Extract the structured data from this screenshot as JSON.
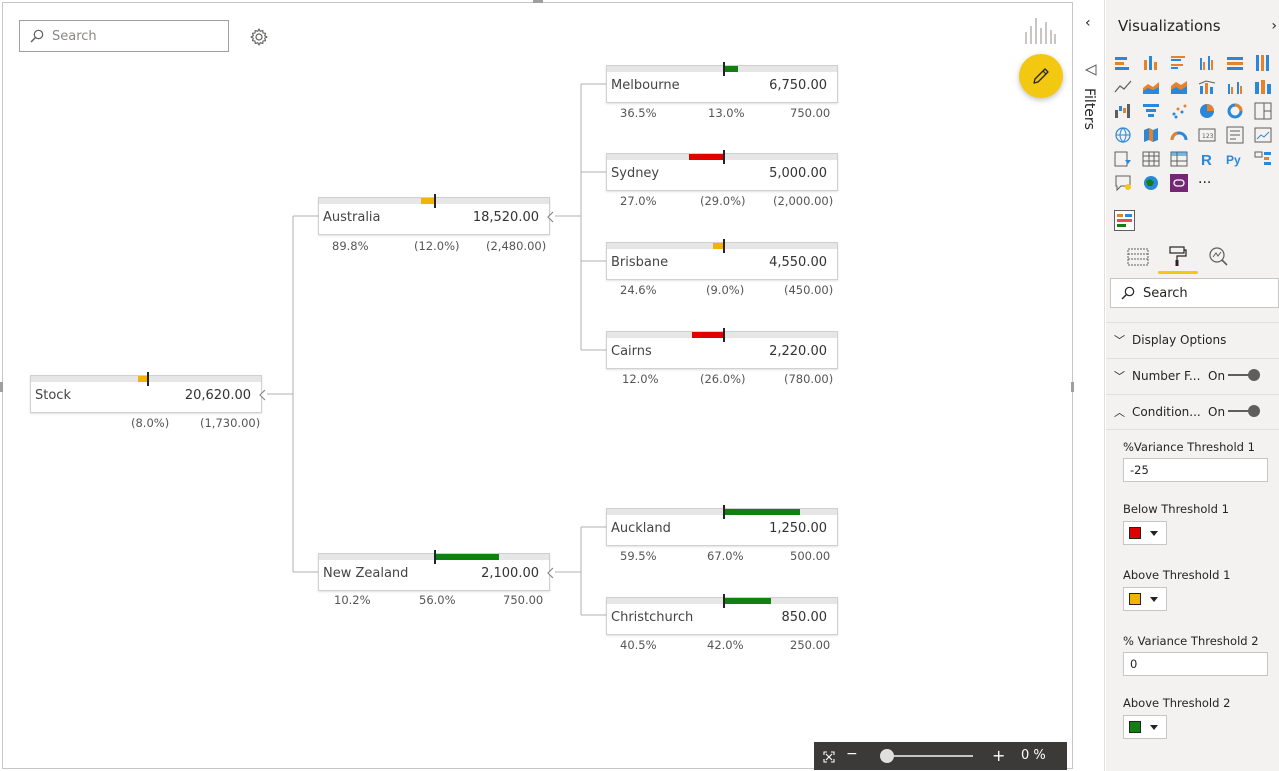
{
  "search": {
    "placeholder": "Search"
  },
  "tree": {
    "root": {
      "label": "Stock",
      "value": "20,620.00",
      "stats": [
        "(8.0%)",
        "(1,730.00)"
      ]
    },
    "countries": [
      {
        "label": "Australia",
        "value": "18,520.00",
        "stats": [
          "89.8%",
          "(12.0%)",
          "(2,480.00)"
        ]
      },
      {
        "label": "New Zealand",
        "value": "2,100.00",
        "stats": [
          "10.2%",
          "56.0%",
          "750.00"
        ]
      }
    ],
    "cities": [
      {
        "label": "Melbourne",
        "value": "6,750.00",
        "stats": [
          "36.5%",
          "13.0%",
          "750.00"
        ]
      },
      {
        "label": "Sydney",
        "value": "5,000.00",
        "stats": [
          "27.0%",
          "(29.0%)",
          "(2,000.00)"
        ]
      },
      {
        "label": "Brisbane",
        "value": "4,550.00",
        "stats": [
          "24.6%",
          "(9.0%)",
          "(450.00)"
        ]
      },
      {
        "label": "Cairns",
        "value": "2,220.00",
        "stats": [
          "12.0%",
          "(26.0%)",
          "(780.00)"
        ]
      },
      {
        "label": "Auckland",
        "value": "1,250.00",
        "stats": [
          "59.5%",
          "67.0%",
          "500.00"
        ]
      },
      {
        "label": "Christchurch",
        "value": "850.00",
        "stats": [
          "40.5%",
          "42.0%",
          "250.00"
        ]
      }
    ]
  },
  "colors": {
    "red": "#e00000",
    "amber": "#f2b400",
    "green": "#108010",
    "accent": "#f2c811"
  },
  "zoom": {
    "minus": "−",
    "plus": "+",
    "percent": "0 %"
  },
  "filters": {
    "label": "Filters"
  },
  "viz_pane": {
    "title": "Visualizations",
    "more": "···",
    "search_placeholder": "Search",
    "sections": [
      {
        "title": "Display Options",
        "state": ""
      },
      {
        "title": "Number F...",
        "state": "On"
      },
      {
        "title": "Condition...",
        "state": "On"
      }
    ],
    "props": {
      "variance_threshold_1_label": "%Variance Threshold 1",
      "variance_threshold_1_value": "-25",
      "below_threshold_1_label": "Below Threshold 1",
      "below_threshold_1_color": "#e00000",
      "above_threshold_1_label": "Above Threshold 1",
      "above_threshold_1_color": "#f2b400",
      "variance_threshold_2_label": "% Variance Threshold 2",
      "variance_threshold_2_value": "0",
      "above_threshold_2_label": "Above Threshold 2",
      "above_threshold_2_color": "#108010"
    }
  }
}
